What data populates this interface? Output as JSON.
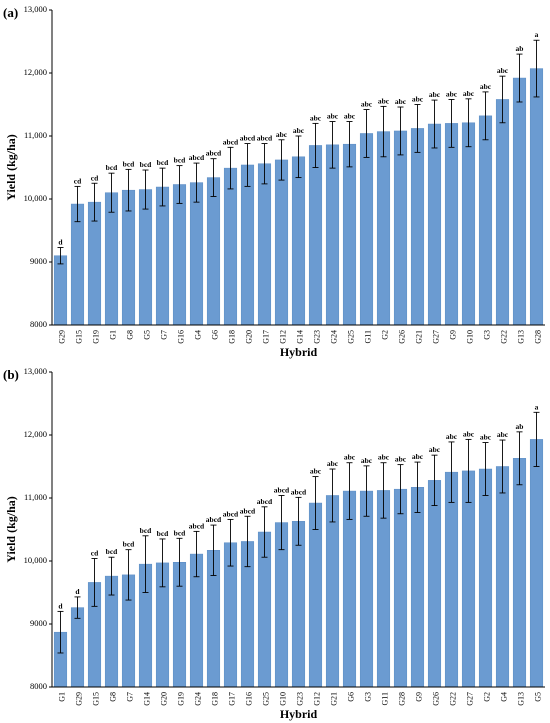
{
  "colors": {
    "bar": "#6b9bd1",
    "bar_edge": "#5a8bc3",
    "axis": "#000000",
    "errorbar": "#000000"
  },
  "chart_data": [
    {
      "type": "bar",
      "panel_label": "(a)",
      "xlabel": "Hybrid",
      "ylabel": "Yield (kg/ha)",
      "ylim": [
        8000,
        13000
      ],
      "yticks": [
        "8000",
        "9000",
        "10,000",
        "11,000",
        "12,000",
        "13,000"
      ],
      "ytick_values": [
        8000,
        9000,
        10000,
        11000,
        12000,
        13000
      ],
      "categories": [
        "G29",
        "G15",
        "G19",
        "G1",
        "G8",
        "G5",
        "G7",
        "G16",
        "G4",
        "G6",
        "G18",
        "G20",
        "G17",
        "G12",
        "G14",
        "G23",
        "G24",
        "G25",
        "G11",
        "G2",
        "G26",
        "G21",
        "G27",
        "G9",
        "G10",
        "G3",
        "G22",
        "G13",
        "G28"
      ],
      "values": [
        9100,
        9920,
        9950,
        10100,
        10140,
        10150,
        10190,
        10230,
        10260,
        10340,
        10490,
        10540,
        10560,
        10620,
        10670,
        10850,
        10860,
        10870,
        11040,
        11070,
        11080,
        11120,
        11190,
        11200,
        11210,
        11320,
        11580,
        11920,
        12070
      ],
      "errors": [
        130,
        280,
        300,
        310,
        330,
        310,
        300,
        300,
        310,
        300,
        330,
        340,
        320,
        320,
        330,
        350,
        370,
        360,
        380,
        400,
        380,
        380,
        380,
        380,
        380,
        380,
        370,
        380,
        450
      ],
      "letters": [
        "d",
        "cd",
        "cd",
        "bcd",
        "bcd",
        "bcd",
        "bcd",
        "bcd",
        "abcd",
        "abcd",
        "abcd",
        "abcd",
        "abcd",
        "abc",
        "abc",
        "abc",
        "abc",
        "abc",
        "abc",
        "abc",
        "abc",
        "abc",
        "abc",
        "abc",
        "abc",
        "abc",
        "abc",
        "ab",
        "a"
      ]
    },
    {
      "type": "bar",
      "panel_label": "(b)",
      "xlabel": "Hybrid",
      "ylabel": "Yield (kg/ha)",
      "ylim": [
        8000,
        13000
      ],
      "yticks": [
        "8000",
        "9000",
        "10,000",
        "11,000",
        "12,000",
        "13,000"
      ],
      "ytick_values": [
        8000,
        9000,
        10000,
        11000,
        12000,
        13000
      ],
      "categories": [
        "G1",
        "G29",
        "G15",
        "G8",
        "G7",
        "G14",
        "G20",
        "G19",
        "G24",
        "G18",
        "G17",
        "G16",
        "G25",
        "G10",
        "G23",
        "G12",
        "G21",
        "G6",
        "G3",
        "G11",
        "G28",
        "G9",
        "G26",
        "G22",
        "G27",
        "G2",
        "G4",
        "G13",
        "G5"
      ],
      "values": [
        8870,
        9260,
        9660,
        9760,
        9780,
        9950,
        9970,
        9980,
        10110,
        10170,
        10290,
        10310,
        10460,
        10610,
        10630,
        10920,
        11040,
        11110,
        11110,
        11120,
        11140,
        11170,
        11280,
        11410,
        11430,
        11460,
        11500,
        11630,
        11930
      ],
      "errors": [
        330,
        170,
        380,
        300,
        400,
        450,
        380,
        380,
        360,
        400,
        370,
        400,
        400,
        430,
        380,
        420,
        420,
        450,
        400,
        440,
        390,
        400,
        400,
        480,
        500,
        420,
        420,
        420,
        430
      ],
      "letters": [
        "d",
        "d",
        "cd",
        "bcd",
        "bcd",
        "bcd",
        "bcd",
        "bcd",
        "abcd",
        "abcd",
        "abcd",
        "abcd",
        "abcd",
        "abcd",
        "abcd",
        "abc",
        "abc",
        "abc",
        "abc",
        "abc",
        "abc",
        "abc",
        "abc",
        "abc",
        "abc",
        "abc",
        "abc",
        "ab",
        "a"
      ]
    }
  ]
}
